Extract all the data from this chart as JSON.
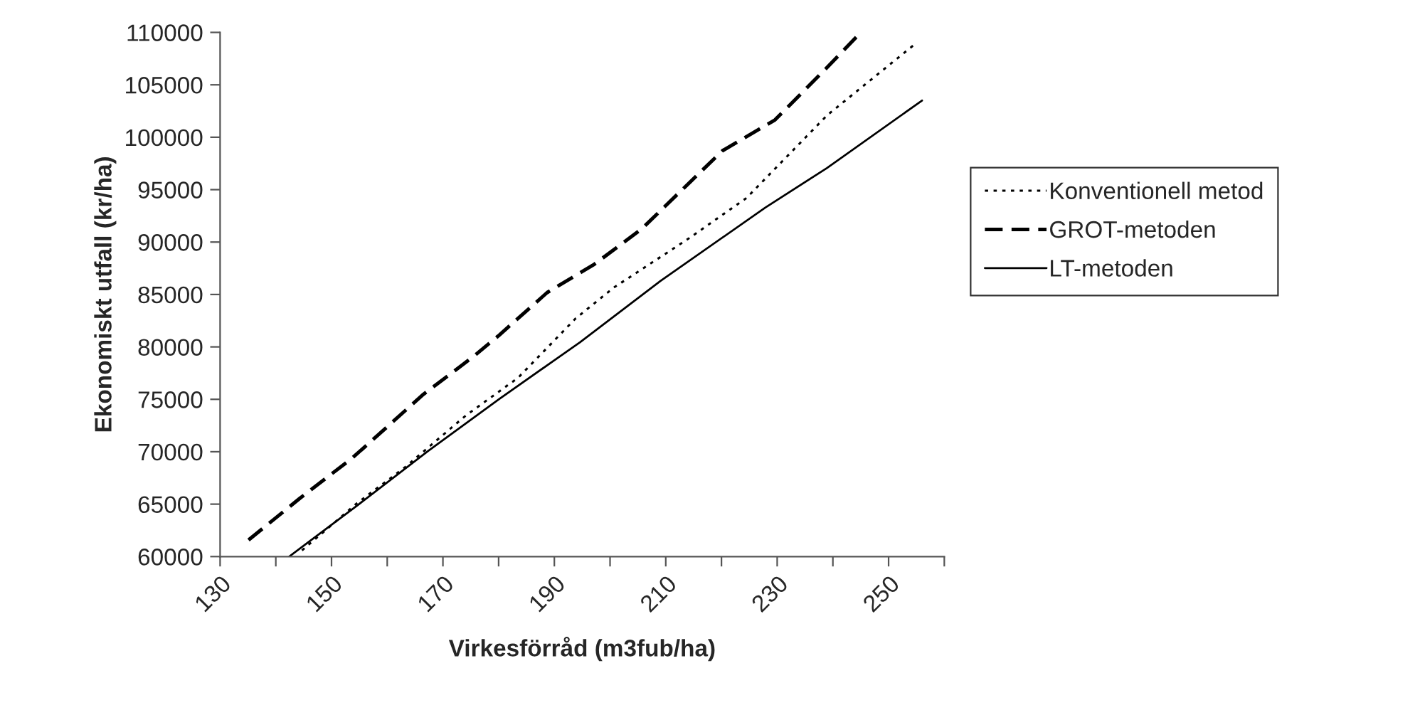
{
  "chart_data": {
    "type": "line",
    "xlabel": "Virkesförråd (m3fub/ha)",
    "ylabel": "Ekonomiskt utfall (kr/ha)",
    "xlim": [
      130,
      260
    ],
    "xticks": [
      130,
      {
        "value": 140,
        "label": null
      },
      150,
      {
        "value": 160,
        "label": null
      },
      170,
      {
        "value": 180,
        "label": null
      },
      190,
      {
        "value": 200,
        "label": null
      },
      210,
      {
        "value": 220,
        "label": null
      },
      230,
      {
        "value": 240,
        "label": null
      },
      250,
      {
        "value": 260,
        "label": null
      }
    ],
    "ylim": [
      60000,
      110000
    ],
    "yticks": [
      60000,
      65000,
      70000,
      75000,
      80000,
      85000,
      90000,
      95000,
      100000,
      105000,
      110000
    ],
    "grid": false,
    "legend": "right",
    "series": [
      {
        "name": "Konventionell metod",
        "color": "#000000",
        "line_style": "dotted",
        "x": [
          144.7,
          154.6,
          163.1,
          174.1,
          183.5,
          193.8,
          200.6,
          214.2,
          224.5,
          239,
          255
        ],
        "values": [
          60590,
          65100,
          68480,
          73450,
          77060,
          82700,
          85630,
          90370,
          94210,
          102110,
          109000
        ]
      },
      {
        "name": "GROT-metoden",
        "color": "#000000",
        "line_style": "dashed",
        "x": [
          135.1,
          144.3,
          153.7,
          157.5,
          166.5,
          175.5,
          180.1,
          188.7,
          197.2,
          205.7,
          220.2,
          229.6,
          238.9,
          245
        ],
        "values": [
          61580,
          65550,
          69390,
          71190,
          75480,
          79090,
          81120,
          85180,
          87890,
          91270,
          98720,
          101650,
          106620,
          110000
        ]
      },
      {
        "name": "LT-metoden",
        "color": "#000000",
        "line_style": "solid",
        "x": [
          142.4,
          154.6,
          167.3,
          180.1,
          194.6,
          209.1,
          227.9,
          238.9,
          256
        ],
        "values": [
          60000,
          64870,
          70060,
          75030,
          80440,
          86310,
          93300,
          97050,
          103500
        ]
      }
    ]
  }
}
